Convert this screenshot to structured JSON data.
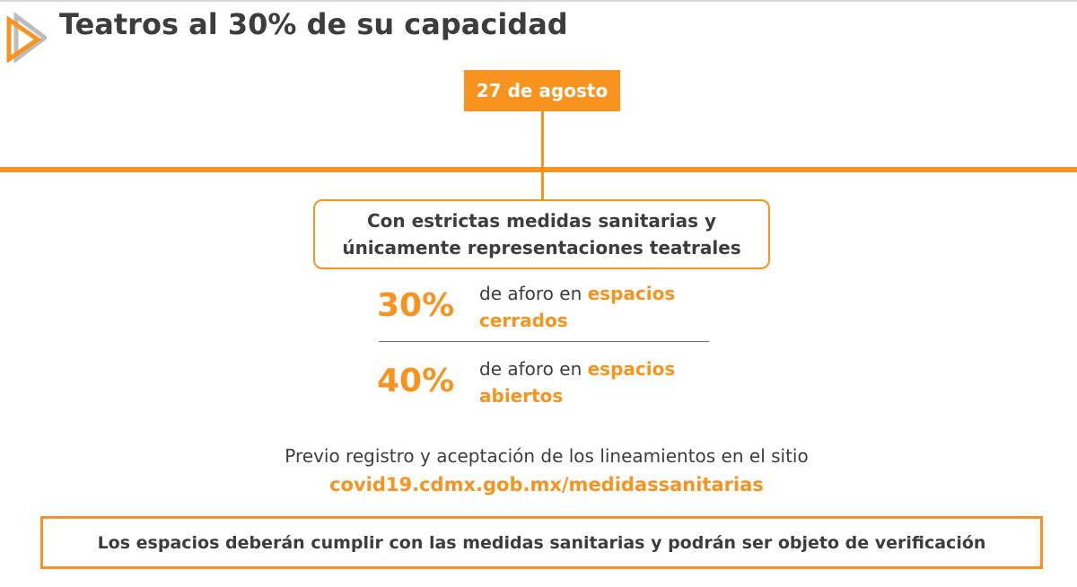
{
  "header": {
    "title": "Teatros al 30% de su capacidad",
    "logo_icon": "play-triangle-icon"
  },
  "timeline": {
    "date": "27 de agosto"
  },
  "measures": {
    "line1": "Con estrictas medidas sanitarias y",
    "line2": "únicamente representaciones teatrales"
  },
  "capacity": [
    {
      "percent": "30%",
      "prefix": "de aforo en",
      "highlight_1": "espacios",
      "highlight_2": "cerrados"
    },
    {
      "percent": "40%",
      "prefix": "de aforo en",
      "highlight_1": "espacios",
      "highlight_2": "abiertos"
    }
  ],
  "registration": {
    "note": "Previo registro y aceptación de los lineamientos en el sitio",
    "url": "covid19.cdmx.gob.mx/medidassanitarias"
  },
  "verification": {
    "text": "Los espacios deberán cumplir con las medidas sanitarias y podrán ser objeto de verificación"
  },
  "colors": {
    "accent": "#f7931e",
    "text": "#3d3d3d",
    "logo_shadow": "#bdbdbd"
  }
}
